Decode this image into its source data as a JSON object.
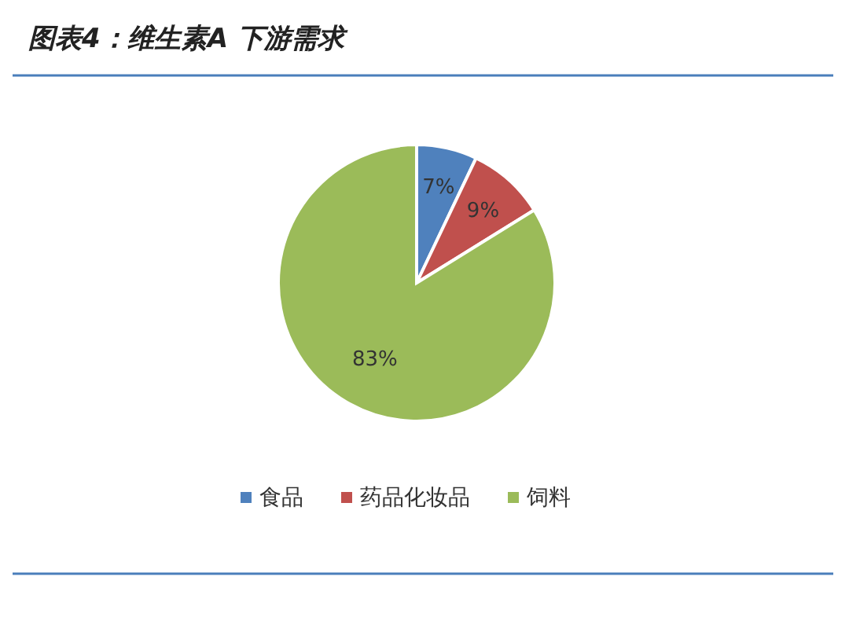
{
  "chart_data": {
    "type": "pie",
    "title": "图表4：维生素A 下游需求",
    "categories": [
      "食品",
      "药品化妆品",
      "饲料"
    ],
    "values": [
      7,
      9,
      83
    ],
    "colors": [
      "#4f81bd",
      "#c0504d",
      "#9bbb59"
    ],
    "value_labels": [
      "7%",
      "9%",
      "83%"
    ],
    "legend": "bottom"
  }
}
